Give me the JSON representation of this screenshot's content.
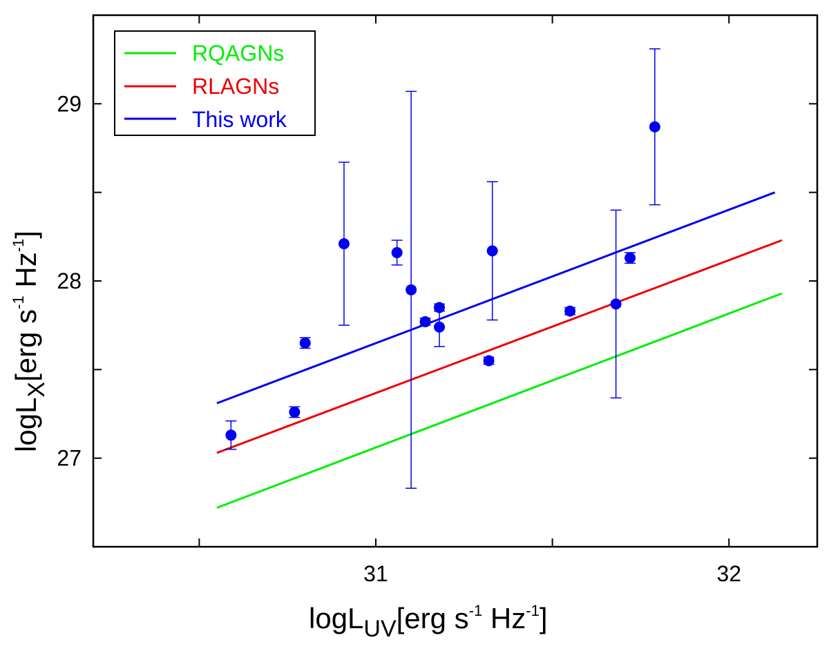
{
  "colors": {
    "rqagns": "#00ee00",
    "rlagns": "#ee0000",
    "this_work": "#0000ee",
    "points": "#0000ee",
    "frame": "#000000"
  },
  "chart_data": {
    "type": "scatter",
    "title": "",
    "xlabel": {
      "prefix": "logL",
      "sub": "UV",
      "p1": "[erg s",
      "s1": "-1",
      "p2": " Hz",
      "s2": "-1",
      "p3": "]"
    },
    "ylabel": {
      "prefix": "logL",
      "sub": "X",
      "p1": "[erg s",
      "s1": "-1",
      "p2": " Hz",
      "s2": "-1",
      "p3": "]"
    },
    "xlim": [
      30.2,
      32.25
    ],
    "ylim": [
      26.5,
      29.5
    ],
    "x_ticks_major": [
      30.5,
      31,
      31.5,
      32
    ],
    "x_tick_labels": [
      {
        "value": 31,
        "label": "31"
      },
      {
        "value": 32,
        "label": "32"
      }
    ],
    "y_ticks_major": [
      26.5,
      27,
      27.5,
      28,
      28.5,
      29
    ],
    "y_tick_labels": [
      {
        "value": 27,
        "label": "27"
      },
      {
        "value": 28,
        "label": "28"
      },
      {
        "value": 29,
        "label": "29"
      }
    ],
    "grid": false,
    "legend": {
      "position": "top-left",
      "entries": [
        {
          "label": "RQAGNs",
          "color": "#00ee00"
        },
        {
          "label": "RLAGNs",
          "color": "#ee0000"
        },
        {
          "label": "This work",
          "color": "#0000ee"
        }
      ]
    },
    "lines": [
      {
        "name": "RQAGNs",
        "color": "#00ee00",
        "x": [
          30.55,
          32.15
        ],
        "y": [
          26.72,
          27.93
        ]
      },
      {
        "name": "RLAGNs",
        "color": "#ee0000",
        "x": [
          30.55,
          32.15
        ],
        "y": [
          27.03,
          28.23
        ]
      },
      {
        "name": "This work",
        "color": "#0000ee",
        "x": [
          30.55,
          32.13
        ],
        "y": [
          27.31,
          28.5
        ]
      }
    ],
    "points": [
      {
        "x": 30.59,
        "y": 27.13,
        "ylo": 27.05,
        "yhi": 27.21
      },
      {
        "x": 30.77,
        "y": 27.26,
        "ylo": 27.23,
        "yhi": 27.29
      },
      {
        "x": 30.8,
        "y": 27.65,
        "ylo": 27.62,
        "yhi": 27.68
      },
      {
        "x": 30.91,
        "y": 28.21,
        "ylo": 27.75,
        "yhi": 28.67
      },
      {
        "x": 31.06,
        "y": 28.16,
        "ylo": 28.09,
        "yhi": 28.23
      },
      {
        "x": 31.1,
        "y": 27.95,
        "ylo": 26.83,
        "yhi": 29.07
      },
      {
        "x": 31.14,
        "y": 27.77,
        "ylo": 27.75,
        "yhi": 27.79
      },
      {
        "x": 31.18,
        "y": 27.85,
        "ylo": 27.83,
        "yhi": 27.87
      },
      {
        "x": 31.18,
        "y": 27.74,
        "ylo": 27.63,
        "yhi": 27.85
      },
      {
        "x": 31.32,
        "y": 27.55,
        "ylo": 27.53,
        "yhi": 27.57
      },
      {
        "x": 31.33,
        "y": 28.17,
        "ylo": 27.78,
        "yhi": 28.56
      },
      {
        "x": 31.55,
        "y": 27.83,
        "ylo": 27.81,
        "yhi": 27.85
      },
      {
        "x": 31.68,
        "y": 27.87,
        "ylo": 27.34,
        "yhi": 28.4
      },
      {
        "x": 31.72,
        "y": 28.13,
        "ylo": 28.1,
        "yhi": 28.16
      },
      {
        "x": 31.79,
        "y": 28.87,
        "ylo": 28.43,
        "yhi": 29.31
      }
    ]
  }
}
